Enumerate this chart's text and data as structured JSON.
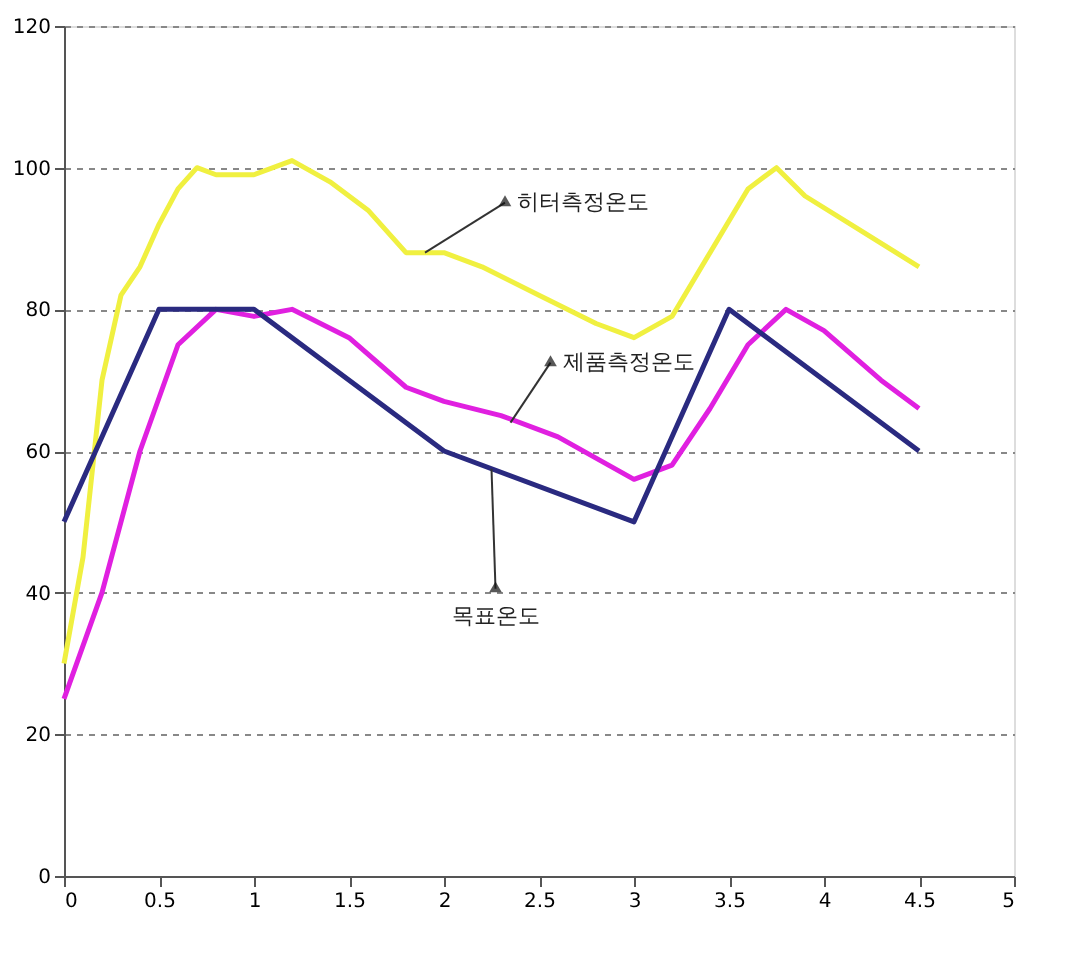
{
  "chart_data": {
    "type": "line",
    "xlim": [
      0,
      5
    ],
    "xticks": [
      0,
      0.5,
      1,
      1.5,
      2,
      2.5,
      3,
      3.5,
      4,
      4.5,
      5
    ],
    "ylim": [
      0,
      120
    ],
    "yticks": [
      0,
      20,
      40,
      60,
      80,
      100,
      120
    ],
    "grid": "y",
    "legend": false,
    "marker": "none",
    "line_style": "solid",
    "series": [
      {
        "color": "#f0f040",
        "x": [
          0,
          0.1,
          0.2,
          0.3,
          0.4,
          0.5,
          0.6,
          0.7,
          0.8,
          1,
          1.2,
          1.4,
          1.6,
          1.8,
          2,
          2.2,
          2.5,
          2.8,
          3,
          3.2,
          3.4,
          3.6,
          3.75,
          3.9,
          4.2,
          4.5
        ],
        "values": [
          30,
          45,
          70,
          82,
          86,
          92,
          97,
          100,
          99,
          99,
          101,
          98,
          94,
          88,
          88,
          86,
          82,
          78,
          76,
          79,
          88,
          97,
          100,
          96,
          91,
          86
        ]
      },
      {
        "color": "#e020e0",
        "x": [
          0,
          0.2,
          0.4,
          0.6,
          0.8,
          1,
          1.2,
          1.5,
          1.8,
          2,
          2.3,
          2.6,
          2.8,
          3,
          3.2,
          3.4,
          3.6,
          3.8,
          4,
          4.3,
          4.5
        ],
        "values": [
          25,
          40,
          60,
          75,
          80,
          79,
          80,
          76,
          69,
          67,
          65,
          62,
          59,
          56,
          58,
          66,
          75,
          80,
          77,
          70,
          66
        ]
      },
      {
        "color": "#2a2a80",
        "x": [
          0,
          0.5,
          1,
          2,
          3,
          3.5,
          4.5
        ],
        "values": [
          50,
          80,
          80,
          60,
          50,
          80,
          60
        ]
      }
    ],
    "annotations": [
      {
        "text": "히터측정온도",
        "x": 1.9,
        "y": 88
      },
      {
        "text": "제품측정온도",
        "x": 2.35,
        "y": 64
      },
      {
        "text": "목표온도",
        "x": 2.25,
        "y": 57.5
      }
    ]
  }
}
